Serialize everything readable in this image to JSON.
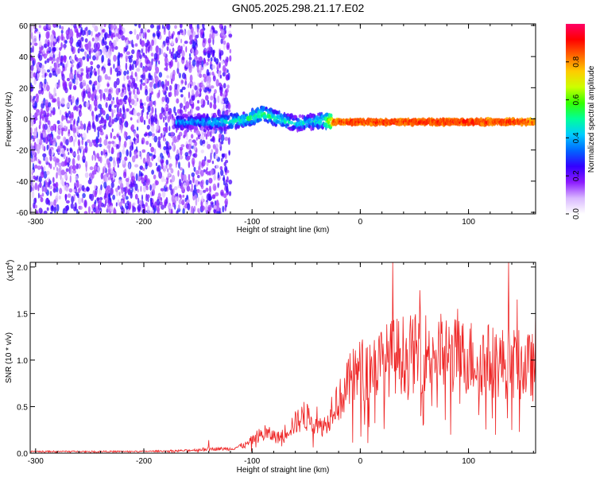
{
  "title": "GN05.2025.298.21.17.E02",
  "colors": {
    "snr_line": "#ee2222",
    "spec_dots": "#6a1fd0",
    "frame": "#000000"
  },
  "chart_data": [
    {
      "type": "heatmap",
      "xlabel": "Height of straight line (km)",
      "ylabel": "Frequency (Hz)",
      "xlim": [
        -305,
        162
      ],
      "ylim": [
        -61,
        61
      ],
      "xticks": [
        -300,
        -200,
        -100,
        0,
        100
      ],
      "xtick_labels": [
        "-300",
        "-200",
        "-100",
        "0",
        "100"
      ],
      "yticks": [
        -60,
        -40,
        -20,
        0,
        20,
        40,
        60
      ],
      "ytick_labels": [
        "-60",
        "-40",
        "-20",
        "0",
        "20",
        "40",
        "60"
      ],
      "grid": false,
      "colorbar": {
        "label": "Normalized spectral amplitude",
        "range": [
          0.0,
          1.0
        ],
        "ticks": [
          0.0,
          0.2,
          0.4,
          0.6,
          0.8
        ],
        "tick_labels": [
          "0.0",
          "0.2",
          "0.4",
          "0.6",
          "0.8"
        ],
        "colormap": [
          "#ffffff",
          "#d9b8ff",
          "#8c1aff",
          "#3300ff",
          "#0066ff",
          "#00ccff",
          "#00ff99",
          "#33ff00",
          "#ccff00",
          "#ffcc00",
          "#ff6600",
          "#ff0000",
          "#ff0066"
        ]
      },
      "features": {
        "scatter_region": {
          "x": [
            -305,
            -120
          ],
          "amplitude": 0.2
        },
        "ridge": {
          "x": [
            -170,
            -150,
            -130,
            -110,
            -90,
            -75,
            -60,
            -45,
            -35,
            -25,
            -10,
            0,
            20,
            40,
            60,
            80,
            100,
            120,
            140,
            160
          ],
          "y": [
            -2,
            -2,
            -2,
            -1,
            3,
            0,
            -3,
            -2,
            -1,
            -2,
            -2,
            -2,
            -2,
            -2,
            -2,
            -2,
            -2,
            -2,
            -2,
            -2
          ],
          "amplitude": [
            0.4,
            0.4,
            0.45,
            0.5,
            0.55,
            0.5,
            0.45,
            0.45,
            0.5,
            0.85,
            0.9,
            0.9,
            0.9,
            0.9,
            0.9,
            0.9,
            0.9,
            0.9,
            0.9,
            0.85
          ]
        }
      }
    },
    {
      "type": "line",
      "xlabel": "Height of straight line (km)",
      "ylabel": "SNR (10 * v/v)",
      "y_multiplier_label": "(x10",
      "y_multiplier_exp": "4",
      "y_multiplier_close": ")",
      "xlim": [
        -305,
        162
      ],
      "ylim": [
        0,
        2.05
      ],
      "xticks": [
        -300,
        -200,
        -100,
        0,
        100
      ],
      "xtick_labels": [
        "-300",
        "-200",
        "-100",
        "0",
        "100"
      ],
      "yticks": [
        0.0,
        0.5,
        1.0,
        1.5,
        2.0
      ],
      "ytick_labels": [
        "0.0",
        "0.5",
        "1.0",
        "1.5",
        "2.0"
      ],
      "grid": false,
      "series": [
        {
          "color": "#ee2222",
          "envelope": {
            "x": [
              -305,
              -250,
              -200,
              -160,
              -140,
              -120,
              -105,
              -95,
              -85,
              -75,
              -65,
              -55,
              -45,
              -38,
              -30,
              -25,
              -20,
              -15,
              -10,
              -5,
              0,
              10,
              20,
              30,
              40,
              50,
              60,
              70,
              80,
              90,
              100,
              110,
              120,
              130,
              140,
              150,
              162
            ],
            "y": [
              0.02,
              0.02,
              0.02,
              0.03,
              0.05,
              0.05,
              0.1,
              0.2,
              0.22,
              0.18,
              0.3,
              0.4,
              0.42,
              0.3,
              0.35,
              0.6,
              0.6,
              0.7,
              0.82,
              0.9,
              0.95,
              1.0,
              1.05,
              1.12,
              1.15,
              1.15,
              1.18,
              1.18,
              1.15,
              1.12,
              1.12,
              1.1,
              1.08,
              1.05,
              1.05,
              1.0,
              1.0
            ]
          },
          "peaks": [
            [
              -140,
              0.14
            ],
            [
              -88,
              0.3
            ],
            [
              -52,
              0.55
            ],
            [
              -40,
              0.5
            ],
            [
              30,
              2.05
            ],
            [
              55,
              1.75
            ],
            [
              90,
              1.55
            ],
            [
              137,
              2.05
            ],
            [
              145,
              1.65
            ],
            [
              162,
              1.6
            ]
          ]
        }
      ]
    }
  ]
}
